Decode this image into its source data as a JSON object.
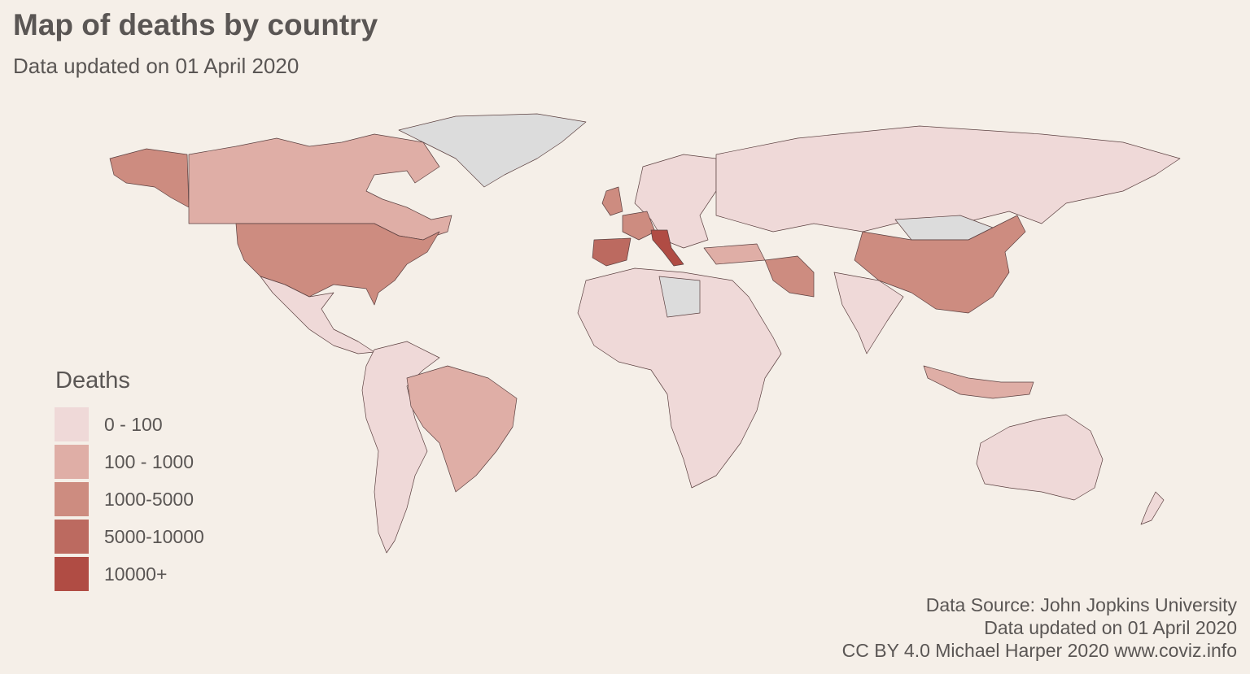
{
  "title": "Map of deaths by country",
  "subtitle": "Data updated on 01 April 2020",
  "legend": {
    "title": "Deaths",
    "items": [
      {
        "label": "0 - 100",
        "color": "#efd9d8"
      },
      {
        "label": "100 - 1000",
        "color": "#dfaea6"
      },
      {
        "label": "1000-5000",
        "color": "#cd8c80"
      },
      {
        "label": "5000-10000",
        "color": "#bc6a60"
      },
      {
        "label": "10000+",
        "color": "#b04c44"
      }
    ]
  },
  "no_data_color": "#dcdcdc",
  "caption": {
    "line1": "Data Source: John Jopkins University",
    "line2": "Data updated on 01 April 2020",
    "line3": "CC BY 4.0 Michael Harper 2020 www.coviz.info"
  },
  "countries": {
    "us": "1000-5000",
    "canada": "100 - 1000",
    "alaska": "1000-5000",
    "mexico": "0 - 100",
    "brazil": "100 - 1000",
    "south_america": "0 - 100",
    "greenland": "none",
    "uk": "1000-5000",
    "spain": "5000-10000",
    "italy": "10000+",
    "france": "1000-5000",
    "europe": "0 - 100",
    "russia": "0 - 100",
    "china": "1000-5000",
    "iran": "1000-5000",
    "turkey": "100 - 1000",
    "mongolia": "none",
    "africa": "0 - 100",
    "libya": "none",
    "australia": "0 - 100",
    "india": "0 - 100",
    "indonesia": "100 - 1000"
  }
}
